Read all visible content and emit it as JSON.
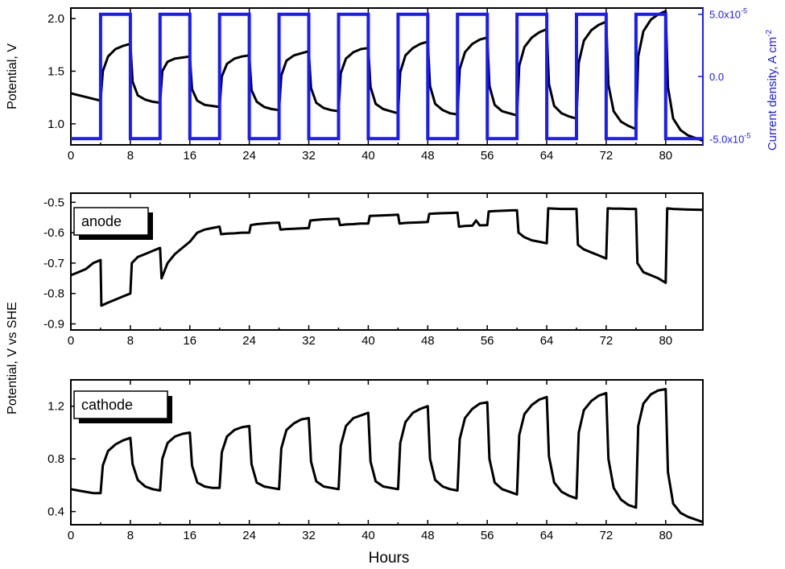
{
  "chart_data": [
    {
      "type": "line",
      "panel": "top",
      "xlabel": "",
      "ylabel": "Potential, V",
      "y2label": "Current density, A cm",
      "y2label_sup": "-2",
      "xlim": [
        0,
        85
      ],
      "ylim": [
        0.8,
        2.1
      ],
      "y2lim": [
        -5.5e-05,
        5.5e-05
      ],
      "x_ticks": [
        "0",
        "8",
        "16",
        "24",
        "32",
        "40",
        "48",
        "56",
        "64",
        "72",
        "80"
      ],
      "y_ticks": [
        {
          "value": 1.0,
          "label": "1.0"
        },
        {
          "value": 1.5,
          "label": "1.5"
        },
        {
          "value": 2.0,
          "label": "2.0"
        }
      ],
      "y2_ticks": [
        {
          "value": 5e-05,
          "base": "5.0x10",
          "exp": "-5"
        },
        {
          "value": 0.0,
          "base": "0.0",
          "exp": ""
        },
        {
          "value": -5e-05,
          "base": "-5.0x10",
          "exp": "-5"
        }
      ],
      "colors": {
        "potential": "#000000",
        "current": "#1a1aff"
      },
      "series": [
        {
          "axis": "left",
          "x": [
            0,
            4,
            4.3,
            5,
            6,
            7,
            8,
            8.3,
            9,
            10,
            11,
            12,
            12.3,
            13,
            14,
            15,
            16,
            16.3,
            17,
            18,
            19,
            20,
            20.3,
            21,
            22,
            23,
            24,
            24.3,
            25,
            26,
            27,
            28,
            28.3,
            29,
            30,
            31,
            32,
            32.3,
            33,
            34,
            35,
            36,
            36.3,
            37,
            38,
            39,
            40,
            40.3,
            41,
            42,
            43,
            44,
            44.3,
            45,
            46,
            47,
            48,
            48.3,
            49,
            50,
            51,
            52,
            52.3,
            53,
            54,
            55,
            56,
            56.3,
            57,
            58,
            59,
            60,
            60.3,
            61,
            62,
            63,
            64,
            64.3,
            65,
            66,
            67,
            68,
            68.3,
            69,
            70,
            71,
            72,
            72.3,
            73,
            74,
            75,
            76,
            76.3,
            77,
            78,
            79,
            80,
            80.3,
            81,
            82,
            83,
            85
          ],
          "y": [
            1.29,
            1.22,
            1.5,
            1.64,
            1.71,
            1.74,
            1.76,
            1.4,
            1.27,
            1.23,
            1.21,
            1.2,
            1.5,
            1.59,
            1.62,
            1.63,
            1.64,
            1.33,
            1.22,
            1.18,
            1.17,
            1.16,
            1.45,
            1.57,
            1.62,
            1.64,
            1.65,
            1.32,
            1.21,
            1.16,
            1.14,
            1.13,
            1.46,
            1.6,
            1.65,
            1.67,
            1.69,
            1.34,
            1.2,
            1.15,
            1.13,
            1.12,
            1.48,
            1.62,
            1.68,
            1.71,
            1.72,
            1.35,
            1.19,
            1.14,
            1.12,
            1.1,
            1.49,
            1.65,
            1.72,
            1.76,
            1.78,
            1.36,
            1.19,
            1.13,
            1.1,
            1.09,
            1.52,
            1.68,
            1.76,
            1.8,
            1.82,
            1.36,
            1.18,
            1.12,
            1.1,
            1.08,
            1.55,
            1.73,
            1.82,
            1.87,
            1.9,
            1.38,
            1.17,
            1.1,
            1.07,
            1.05,
            1.58,
            1.79,
            1.89,
            1.94,
            1.97,
            1.37,
            1.12,
            1.02,
            0.98,
            0.95,
            1.64,
            1.88,
            1.99,
            2.04,
            2.07,
            1.35,
            1.05,
            0.94,
            0.89,
            0.84
          ]
        },
        {
          "axis": "right",
          "x": [
            0,
            4,
            4,
            8,
            8,
            12,
            12,
            16,
            16,
            20,
            20,
            24,
            24,
            28,
            28,
            32,
            32,
            36,
            36,
            40,
            40,
            44,
            44,
            48,
            48,
            52,
            52,
            56,
            56,
            60,
            60,
            64,
            64,
            68,
            68,
            72,
            72,
            76,
            76,
            80,
            80,
            85
          ],
          "y": [
            -5e-05,
            -5e-05,
            5e-05,
            5e-05,
            -5e-05,
            -5e-05,
            5e-05,
            5e-05,
            -5e-05,
            -5e-05,
            5e-05,
            5e-05,
            -5e-05,
            -5e-05,
            5e-05,
            5e-05,
            -5e-05,
            -5e-05,
            5e-05,
            5e-05,
            -5e-05,
            -5e-05,
            5e-05,
            5e-05,
            -5e-05,
            -5e-05,
            5e-05,
            5e-05,
            -5e-05,
            -5e-05,
            5e-05,
            5e-05,
            -5e-05,
            -5e-05,
            5e-05,
            5e-05,
            -5e-05,
            -5e-05,
            5e-05,
            5e-05,
            -5e-05,
            -5e-05
          ]
        }
      ]
    },
    {
      "type": "line",
      "panel": "middle",
      "annotation": "anode",
      "xlim": [
        0,
        85
      ],
      "ylim": [
        -0.92,
        -0.47
      ],
      "x_ticks": [
        "0",
        "8",
        "16",
        "24",
        "32",
        "40",
        "48",
        "56",
        "64",
        "72",
        "80"
      ],
      "y_ticks": [
        {
          "value": -0.9,
          "label": "-0.9"
        },
        {
          "value": -0.8,
          "label": "-0.8"
        },
        {
          "value": -0.7,
          "label": "-0.7"
        },
        {
          "value": -0.6,
          "label": "-0.6"
        },
        {
          "value": -0.5,
          "label": "-0.5"
        }
      ],
      "series": [
        {
          "x": [
            0,
            1,
            2,
            3,
            4,
            4.1,
            5,
            6,
            7,
            8,
            8.2,
            9,
            10,
            11,
            12,
            12.2,
            13,
            14,
            15,
            16,
            17,
            18,
            19,
            20,
            20.2,
            21,
            22,
            23,
            24,
            24.2,
            25,
            26,
            27,
            28,
            28.2,
            29,
            30,
            31,
            32,
            32.2,
            33,
            34,
            35,
            36,
            36.2,
            37,
            38,
            39,
            40,
            40.2,
            41,
            42,
            43,
            44,
            44.2,
            45,
            46,
            47,
            48,
            48.2,
            49,
            50,
            51,
            52,
            52.2,
            53,
            54,
            54.5,
            55,
            56,
            56.2,
            57,
            58,
            59,
            60,
            60.2,
            61,
            62,
            63,
            64,
            64.2,
            65,
            66,
            67,
            68,
            68.2,
            69,
            70,
            71,
            72,
            72.2,
            73,
            74,
            75,
            76,
            76.2,
            77,
            78,
            79,
            80,
            80.2,
            81,
            82,
            83,
            85
          ],
          "y": [
            -0.74,
            -0.73,
            -0.72,
            -0.7,
            -0.69,
            -0.84,
            -0.83,
            -0.82,
            -0.81,
            -0.8,
            -0.7,
            -0.68,
            -0.67,
            -0.66,
            -0.65,
            -0.75,
            -0.7,
            -0.67,
            -0.65,
            -0.63,
            -0.6,
            -0.59,
            -0.585,
            -0.58,
            -0.605,
            -0.603,
            -0.602,
            -0.6,
            -0.6,
            -0.575,
            -0.572,
            -0.57,
            -0.568,
            -0.567,
            -0.59,
            -0.588,
            -0.587,
            -0.586,
            -0.585,
            -0.56,
            -0.558,
            -0.556,
            -0.555,
            -0.554,
            -0.575,
            -0.573,
            -0.572,
            -0.57,
            -0.57,
            -0.545,
            -0.544,
            -0.543,
            -0.542,
            -0.541,
            -0.57,
            -0.568,
            -0.567,
            -0.566,
            -0.565,
            -0.538,
            -0.537,
            -0.536,
            -0.535,
            -0.534,
            -0.58,
            -0.578,
            -0.577,
            -0.56,
            -0.576,
            -0.575,
            -0.53,
            -0.529,
            -0.528,
            -0.527,
            -0.526,
            -0.6,
            -0.615,
            -0.625,
            -0.63,
            -0.635,
            -0.52,
            -0.521,
            -0.522,
            -0.522,
            -0.522,
            -0.64,
            -0.655,
            -0.665,
            -0.675,
            -0.685,
            -0.52,
            -0.521,
            -0.521,
            -0.522,
            -0.522,
            -0.7,
            -0.73,
            -0.74,
            -0.75,
            -0.765,
            -0.52,
            -0.522,
            -0.523,
            -0.524,
            -0.525
          ]
        }
      ]
    },
    {
      "type": "line",
      "panel": "bottom",
      "annotation": "cathode",
      "xlabel": "Hours",
      "ylabel": "Potential, V vs SHE",
      "xlim": [
        0,
        85
      ],
      "ylim": [
        0.3,
        1.4
      ],
      "x_ticks": [
        "0",
        "8",
        "16",
        "24",
        "32",
        "40",
        "48",
        "56",
        "64",
        "72",
        "80"
      ],
      "y_ticks": [
        {
          "value": 0.4,
          "label": "0.4"
        },
        {
          "value": 0.8,
          "label": "0.8"
        },
        {
          "value": 1.2,
          "label": "1.2"
        }
      ],
      "series": [
        {
          "x": [
            0,
            1,
            2,
            3,
            4,
            4.3,
            5,
            6,
            7,
            8,
            8.3,
            9,
            10,
            11,
            12,
            12.3,
            13,
            14,
            15,
            16,
            16.3,
            17,
            18,
            19,
            20,
            20.3,
            21,
            22,
            23,
            24,
            24.3,
            25,
            26,
            27,
            28,
            28.3,
            29,
            30,
            31,
            32,
            32.3,
            33,
            34,
            35,
            36,
            36.3,
            37,
            38,
            39,
            40,
            40.3,
            41,
            42,
            43,
            44,
            44.3,
            45,
            46,
            47,
            48,
            48.3,
            49,
            50,
            51,
            52,
            52.3,
            53,
            54,
            55,
            56,
            56.3,
            57,
            58,
            59,
            60,
            60.3,
            61,
            62,
            63,
            64,
            64.3,
            65,
            66,
            67,
            68,
            68.3,
            69,
            70,
            71,
            72,
            72.3,
            73,
            74,
            75,
            76,
            76.3,
            77,
            78,
            79,
            80,
            80.3,
            81,
            82,
            83,
            85
          ],
          "y": [
            0.57,
            0.56,
            0.55,
            0.54,
            0.54,
            0.75,
            0.86,
            0.91,
            0.94,
            0.96,
            0.76,
            0.64,
            0.59,
            0.57,
            0.56,
            0.8,
            0.92,
            0.97,
            0.99,
            1.0,
            0.75,
            0.62,
            0.59,
            0.58,
            0.58,
            0.85,
            0.97,
            1.02,
            1.04,
            1.05,
            0.76,
            0.62,
            0.59,
            0.58,
            0.57,
            0.88,
            1.02,
            1.07,
            1.1,
            1.11,
            0.78,
            0.63,
            0.59,
            0.58,
            0.57,
            0.9,
            1.05,
            1.11,
            1.13,
            1.15,
            0.78,
            0.63,
            0.59,
            0.58,
            0.57,
            0.92,
            1.08,
            1.15,
            1.18,
            1.2,
            0.8,
            0.64,
            0.59,
            0.57,
            0.56,
            0.95,
            1.11,
            1.18,
            1.22,
            1.23,
            0.8,
            0.62,
            0.57,
            0.55,
            0.53,
            0.98,
            1.14,
            1.21,
            1.25,
            1.27,
            0.82,
            0.62,
            0.55,
            0.52,
            0.5,
            1.0,
            1.17,
            1.24,
            1.28,
            1.3,
            0.8,
            0.58,
            0.49,
            0.45,
            0.43,
            1.05,
            1.22,
            1.29,
            1.32,
            1.33,
            0.7,
            0.46,
            0.39,
            0.36,
            0.32
          ]
        }
      ]
    }
  ]
}
